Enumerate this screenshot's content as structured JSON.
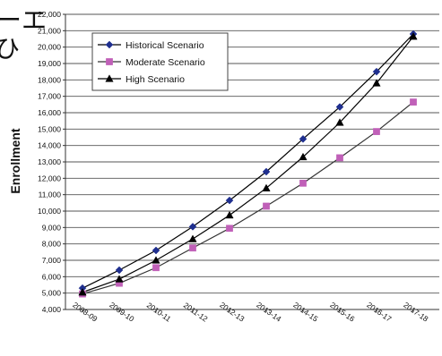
{
  "cropped_fragments": {
    "top_left": "ーエ",
    "top_left_2": "ひ"
  },
  "chart_data": {
    "type": "line",
    "title": "",
    "xlabel": "",
    "ylabel": "Enrollment",
    "categories": [
      "2008-09",
      "2009-10",
      "2010-11",
      "2011-12",
      "2012-13",
      "2013-14",
      "2014-15",
      "2015-16",
      "2016-17",
      "2017-18"
    ],
    "ylim": [
      4000,
      22000
    ],
    "yticks": [
      4000,
      5000,
      6000,
      7000,
      8000,
      9000,
      10000,
      11000,
      12000,
      13000,
      14000,
      15000,
      16000,
      17000,
      18000,
      19000,
      20000,
      21000,
      22000
    ],
    "ytick_labels": [
      "4,000",
      "5,000",
      "6,000",
      "7,000",
      "8,000",
      "9,000",
      "10,000",
      "11,000",
      "12,000",
      "13,000",
      "14,000",
      "15,000",
      "16,000",
      "17,000",
      "18,000",
      "19,000",
      "20,000",
      "21,000",
      "22,000"
    ],
    "grid": "horizontal",
    "legend_position": "top-left",
    "series": [
      {
        "name": "Historical Scenario",
        "color": "#1f2f8f",
        "marker": "diamond",
        "values": [
          5300,
          6400,
          7600,
          9050,
          10650,
          12400,
          14400,
          16350,
          18500,
          20800
        ]
      },
      {
        "name": "Moderate Scenario",
        "color": "#c060b8",
        "marker": "square",
        "values": [
          4950,
          5600,
          6550,
          7750,
          8950,
          10300,
          11700,
          13250,
          14850,
          16650
        ]
      },
      {
        "name": "High Scenario",
        "color": "#000000",
        "marker": "triangle",
        "values": [
          5050,
          5850,
          7000,
          8300,
          9750,
          11400,
          13300,
          15400,
          17800,
          20650
        ]
      }
    ]
  }
}
